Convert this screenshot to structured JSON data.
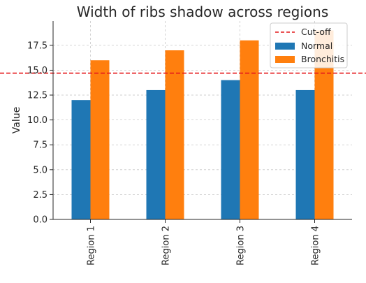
{
  "chart_data": {
    "type": "bar",
    "title": "Width of ribs shadow across regions",
    "xlabel": "",
    "ylabel": "Value",
    "categories": [
      "Region 1",
      "Region 2",
      "Region 3",
      "Region 4"
    ],
    "series": [
      {
        "name": "Normal",
        "values": [
          12,
          13,
          14,
          13
        ],
        "color": "#1f77b4"
      },
      {
        "name": "Bronchitis",
        "values": [
          16,
          17,
          18,
          19
        ],
        "color": "#ff7f0e"
      }
    ],
    "reference_line": {
      "name": "Cut-off",
      "value": 14.7,
      "color": "#e41a1c",
      "style": "dashed"
    },
    "ylim": [
      0,
      19.95
    ],
    "yticks": [
      "0.0",
      "2.5",
      "5.0",
      "7.5",
      "10.0",
      "12.5",
      "15.0",
      "17.5"
    ],
    "grid": true,
    "legend_position": "top-right"
  }
}
